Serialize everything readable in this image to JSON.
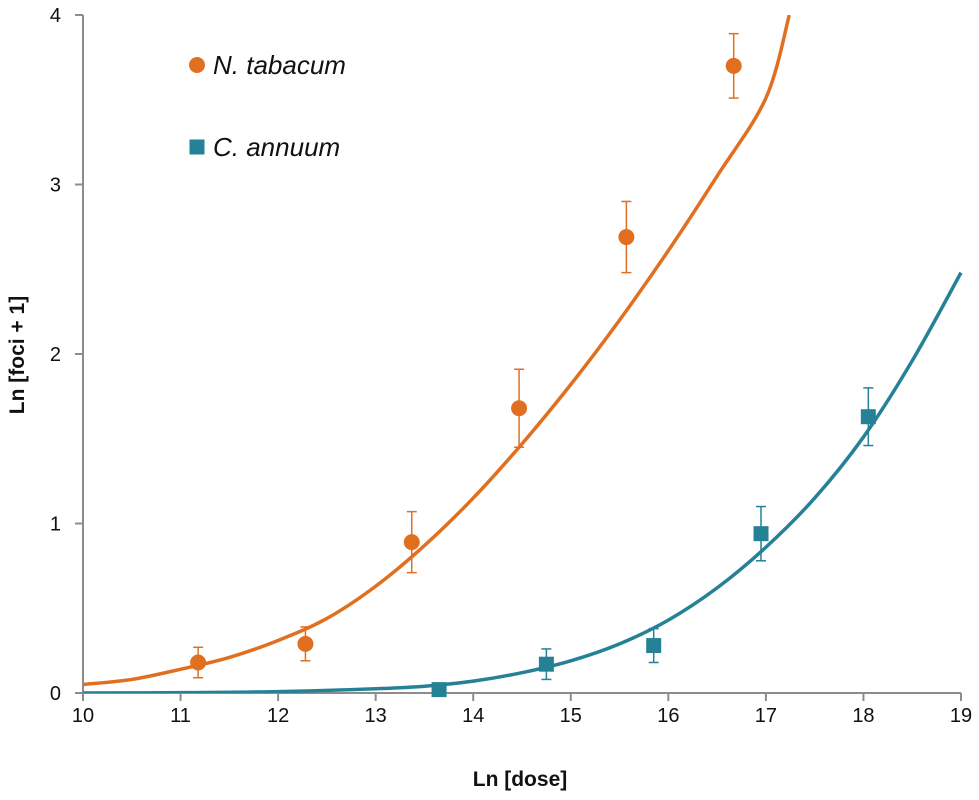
{
  "chart_data": {
    "type": "scatter",
    "xlabel": "Ln [dose]",
    "ylabel": "Ln [foci + 1]",
    "xlim": [
      10,
      19
    ],
    "ylim": [
      0,
      4
    ],
    "xticks": [
      10,
      11,
      12,
      13,
      14,
      15,
      16,
      17,
      18,
      19
    ],
    "yticks": [
      0,
      1,
      2,
      3,
      4
    ],
    "legend_position": "top-left",
    "grid": false,
    "series": [
      {
        "name": "N. tabacum",
        "marker": "circle",
        "color": "#E07020",
        "points": [
          {
            "x": 11.18,
            "y": 0.18,
            "err": 0.09
          },
          {
            "x": 12.28,
            "y": 0.29,
            "err": 0.1
          },
          {
            "x": 13.37,
            "y": 0.89,
            "err": 0.18
          },
          {
            "x": 14.47,
            "y": 1.68,
            "err": 0.23
          },
          {
            "x": 15.57,
            "y": 2.69,
            "err": 0.21
          },
          {
            "x": 16.67,
            "y": 3.7,
            "err": 0.19
          }
        ],
        "fit_curve": [
          [
            10.0,
            0.05
          ],
          [
            10.5,
            0.08
          ],
          [
            11.0,
            0.14
          ],
          [
            11.5,
            0.21
          ],
          [
            12.0,
            0.31
          ],
          [
            12.5,
            0.44
          ],
          [
            13.0,
            0.63
          ],
          [
            13.5,
            0.87
          ],
          [
            14.0,
            1.15
          ],
          [
            14.5,
            1.47
          ],
          [
            15.0,
            1.82
          ],
          [
            15.5,
            2.2
          ],
          [
            16.0,
            2.61
          ],
          [
            16.5,
            3.05
          ],
          [
            17.0,
            3.51
          ],
          [
            17.24,
            4.0
          ]
        ]
      },
      {
        "name": "C. annuum",
        "marker": "square",
        "color": "#258296",
        "points": [
          {
            "x": 13.65,
            "y": 0.02,
            "err": 0.0
          },
          {
            "x": 14.75,
            "y": 0.17,
            "err": 0.09
          },
          {
            "x": 15.85,
            "y": 0.28,
            "err": 0.1
          },
          {
            "x": 16.95,
            "y": 0.94,
            "err": 0.16
          },
          {
            "x": 18.05,
            "y": 1.63,
            "err": 0.17
          }
        ],
        "fit_curve": [
          [
            10.0,
            0.0
          ],
          [
            11.0,
            0.002
          ],
          [
            12.0,
            0.008
          ],
          [
            13.0,
            0.025
          ],
          [
            13.5,
            0.04
          ],
          [
            14.0,
            0.07
          ],
          [
            14.5,
            0.12
          ],
          [
            15.0,
            0.19
          ],
          [
            15.5,
            0.29
          ],
          [
            16.0,
            0.43
          ],
          [
            16.5,
            0.62
          ],
          [
            17.0,
            0.86
          ],
          [
            17.5,
            1.15
          ],
          [
            18.0,
            1.51
          ],
          [
            18.5,
            1.96
          ],
          [
            19.0,
            2.48
          ]
        ]
      }
    ]
  }
}
